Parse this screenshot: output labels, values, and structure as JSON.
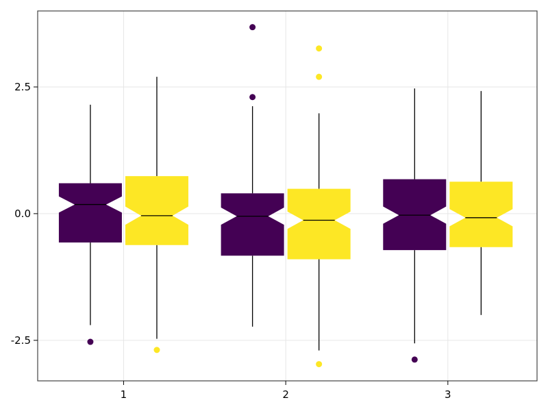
{
  "chart_data": {
    "type": "boxplot",
    "notched": true,
    "grid": true,
    "ylim": [
      -3.3,
      4.0
    ],
    "yticks": [
      -2.5,
      0.0,
      2.5
    ],
    "ytick_labels": [
      "-2.5",
      "0.0",
      "2.5"
    ],
    "categories": [
      "1",
      "2",
      "3"
    ],
    "xticks": [
      1,
      2,
      3
    ],
    "xlim": [
      0.47,
      3.55
    ],
    "series": [
      {
        "color": "#440154",
        "boxes": [
          {
            "category": "1",
            "x": 0.795,
            "whisker_low": -2.2,
            "q1": -0.57,
            "median": 0.18,
            "q3": 0.6,
            "whisker_high": 2.15,
            "notch_low": 0.02,
            "notch_high": 0.34,
            "outliers": [
              -2.53
            ]
          },
          {
            "category": "2",
            "x": 1.795,
            "whisker_low": -2.23,
            "q1": -0.83,
            "median": -0.05,
            "q3": 0.4,
            "whisker_high": 2.12,
            "notch_low": -0.22,
            "notch_high": 0.12,
            "outliers": [
              3.68,
              2.3
            ]
          },
          {
            "category": "3",
            "x": 2.795,
            "whisker_low": -2.56,
            "q1": -0.72,
            "median": -0.03,
            "q3": 0.68,
            "whisker_high": 2.47,
            "notch_low": -0.2,
            "notch_high": 0.14,
            "outliers": [
              -2.88
            ]
          }
        ]
      },
      {
        "color": "#fde725",
        "boxes": [
          {
            "category": "1",
            "x": 1.205,
            "whisker_low": -2.47,
            "q1": -0.62,
            "median": -0.04,
            "q3": 0.74,
            "whisker_high": 2.7,
            "notch_low": -0.22,
            "notch_high": 0.14,
            "outliers": [
              -2.69
            ]
          },
          {
            "category": "2",
            "x": 2.205,
            "whisker_low": -2.7,
            "q1": -0.9,
            "median": -0.13,
            "q3": 0.49,
            "whisker_high": 1.98,
            "notch_low": -0.3,
            "notch_high": 0.04,
            "outliers": [
              3.26,
              2.7,
              -2.97
            ]
          },
          {
            "category": "3",
            "x": 3.205,
            "whisker_low": -2.0,
            "q1": -0.66,
            "median": -0.08,
            "q3": 0.63,
            "whisker_high": 2.42,
            "notch_low": -0.25,
            "notch_high": 0.09,
            "outliers": []
          }
        ]
      }
    ]
  }
}
